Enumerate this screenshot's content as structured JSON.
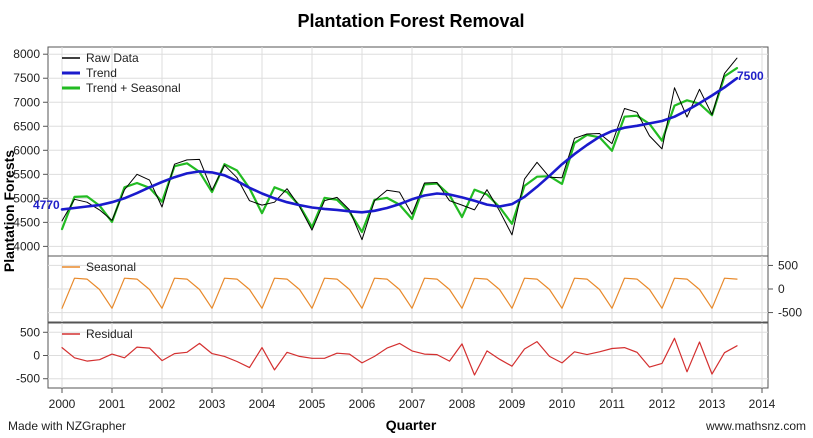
{
  "chart_data": {
    "type": "line",
    "title": "Plantation Forest Removal",
    "xlabel": "Quarter",
    "ylabel": "Plantation Forests",
    "footer_left": "Made with NZGrapher",
    "footer_right": "www.mathsnz.com",
    "x_ticks": [
      "2000",
      "2001",
      "2002",
      "2003",
      "2004",
      "2005",
      "2006",
      "2007",
      "2008",
      "2009",
      "2010",
      "2011",
      "2012",
      "2013",
      "2014"
    ],
    "xlim": [
      2000,
      2014
    ],
    "colors": {
      "raw": "#000000",
      "trend": "#1a1acc",
      "trend_seasonal": "#22bb22",
      "seasonal": "#e8892a",
      "residual": "#d43030",
      "annotation": "#2020c8"
    },
    "main": {
      "ylim": [
        3800,
        8150
      ],
      "y_ticks": [
        "4000",
        "4500",
        "5000",
        "5500",
        "6000",
        "6500",
        "7000",
        "7500",
        "8000"
      ],
      "legend": [
        "Raw Data",
        "Trend",
        "Trend + Seasonal"
      ],
      "legend_position": "top-left",
      "trend_start_label": "4770",
      "trend_end_label": "7500"
    },
    "seasonal_panel": {
      "legend": "Seasonal",
      "y_ticks": [
        "500",
        "0",
        "-500"
      ],
      "ylim": [
        -700,
        700
      ],
      "tick_side": "right"
    },
    "residual_panel": {
      "legend": "Residual",
      "y_ticks": [
        "500",
        "0",
        "-500"
      ],
      "ylim": [
        -700,
        700
      ],
      "tick_side": "left"
    },
    "x": [
      2000.0,
      2000.25,
      2000.5,
      2000.75,
      2001.0,
      2001.25,
      2001.5,
      2001.75,
      2002.0,
      2002.25,
      2002.5,
      2002.75,
      2003.0,
      2003.25,
      2003.5,
      2003.75,
      2004.0,
      2004.25,
      2004.5,
      2004.75,
      2005.0,
      2005.25,
      2005.5,
      2005.75,
      2006.0,
      2006.25,
      2006.5,
      2006.75,
      2007.0,
      2007.25,
      2007.5,
      2007.75,
      2008.0,
      2008.25,
      2008.5,
      2008.75,
      2009.0,
      2009.25,
      2009.5,
      2009.75,
      2010.0,
      2010.25,
      2010.5,
      2010.75,
      2011.0,
      2011.25,
      2011.5,
      2011.75,
      2012.0,
      2012.25,
      2012.5,
      2012.75,
      2013.0,
      2013.25,
      2013.5
    ],
    "series": [
      {
        "name": "Raw Data",
        "values": [
          4530,
          4980,
          4920,
          4760,
          4540,
          5180,
          5500,
          5380,
          4820,
          5710,
          5800,
          5810,
          5170,
          5690,
          5430,
          4950,
          4860,
          4920,
          5200,
          4830,
          4340,
          4950,
          5020,
          4760,
          4140,
          4950,
          5170,
          5130,
          4670,
          5320,
          5330,
          4950,
          4860,
          4760,
          5180,
          4740,
          4240,
          5400,
          5750,
          5440,
          5430,
          6250,
          6340,
          6350,
          6140,
          6870,
          6790,
          6300,
          6030,
          7300,
          6690,
          7270,
          6740,
          7600,
          7920
        ]
      },
      {
        "name": "Trend",
        "values": [
          4770,
          4800,
          4830,
          4860,
          4920,
          5000,
          5110,
          5230,
          5340,
          5440,
          5520,
          5560,
          5540,
          5480,
          5360,
          5220,
          5100,
          5000,
          4920,
          4860,
          4810,
          4780,
          4760,
          4730,
          4710,
          4740,
          4800,
          4880,
          4980,
          5060,
          5100,
          5080,
          5020,
          4950,
          4870,
          4830,
          4880,
          5030,
          5240,
          5470,
          5710,
          5920,
          6110,
          6280,
          6400,
          6470,
          6510,
          6560,
          6610,
          6700,
          6830,
          6980,
          7140,
          7310,
          7500
        ]
      },
      {
        "name": "Trend + Seasonal",
        "values": [
          4360,
          5030,
          5040,
          4850,
          4510,
          5230,
          5320,
          5220,
          4930,
          5670,
          5730,
          5550,
          5130,
          5710,
          5580,
          5210,
          4690,
          5230,
          5130,
          4850,
          4400,
          5010,
          4970,
          4720,
          4300,
          4970,
          5010,
          4870,
          4570,
          5290,
          5310,
          5070,
          4610,
          5180,
          5080,
          4820,
          4470,
          5260,
          5450,
          5460,
          5300,
          6150,
          6320,
          6270,
          5990,
          6700,
          6720,
          6550,
          6200,
          6930,
          7040,
          6970,
          6730,
          7540,
          7710
        ]
      },
      {
        "name": "Seasonal",
        "values": [
          -410,
          230,
          210,
          -10,
          -410,
          230,
          210,
          -10,
          -410,
          230,
          210,
          -10,
          -410,
          230,
          210,
          -10,
          -410,
          230,
          210,
          -10,
          -410,
          230,
          210,
          -10,
          -410,
          230,
          210,
          -10,
          -410,
          230,
          210,
          -10,
          -410,
          230,
          210,
          -10,
          -410,
          230,
          210,
          -10,
          -410,
          230,
          210,
          -10,
          -410,
          230,
          210,
          -10,
          -410,
          230,
          210,
          -10,
          -410,
          230,
          210
        ]
      },
      {
        "name": "Residual",
        "values": [
          170,
          -50,
          -120,
          -90,
          30,
          -50,
          180,
          160,
          -110,
          40,
          70,
          260,
          40,
          -20,
          -130,
          -260,
          170,
          -310,
          70,
          -20,
          -60,
          -60,
          50,
          30,
          -160,
          -20,
          160,
          260,
          100,
          30,
          20,
          -120,
          250,
          -420,
          100,
          -80,
          -230,
          140,
          300,
          -20,
          -160,
          80,
          20,
          80,
          150,
          170,
          70,
          -250,
          -170,
          370,
          -350,
          290,
          -400,
          60,
          210
        ]
      }
    ]
  }
}
